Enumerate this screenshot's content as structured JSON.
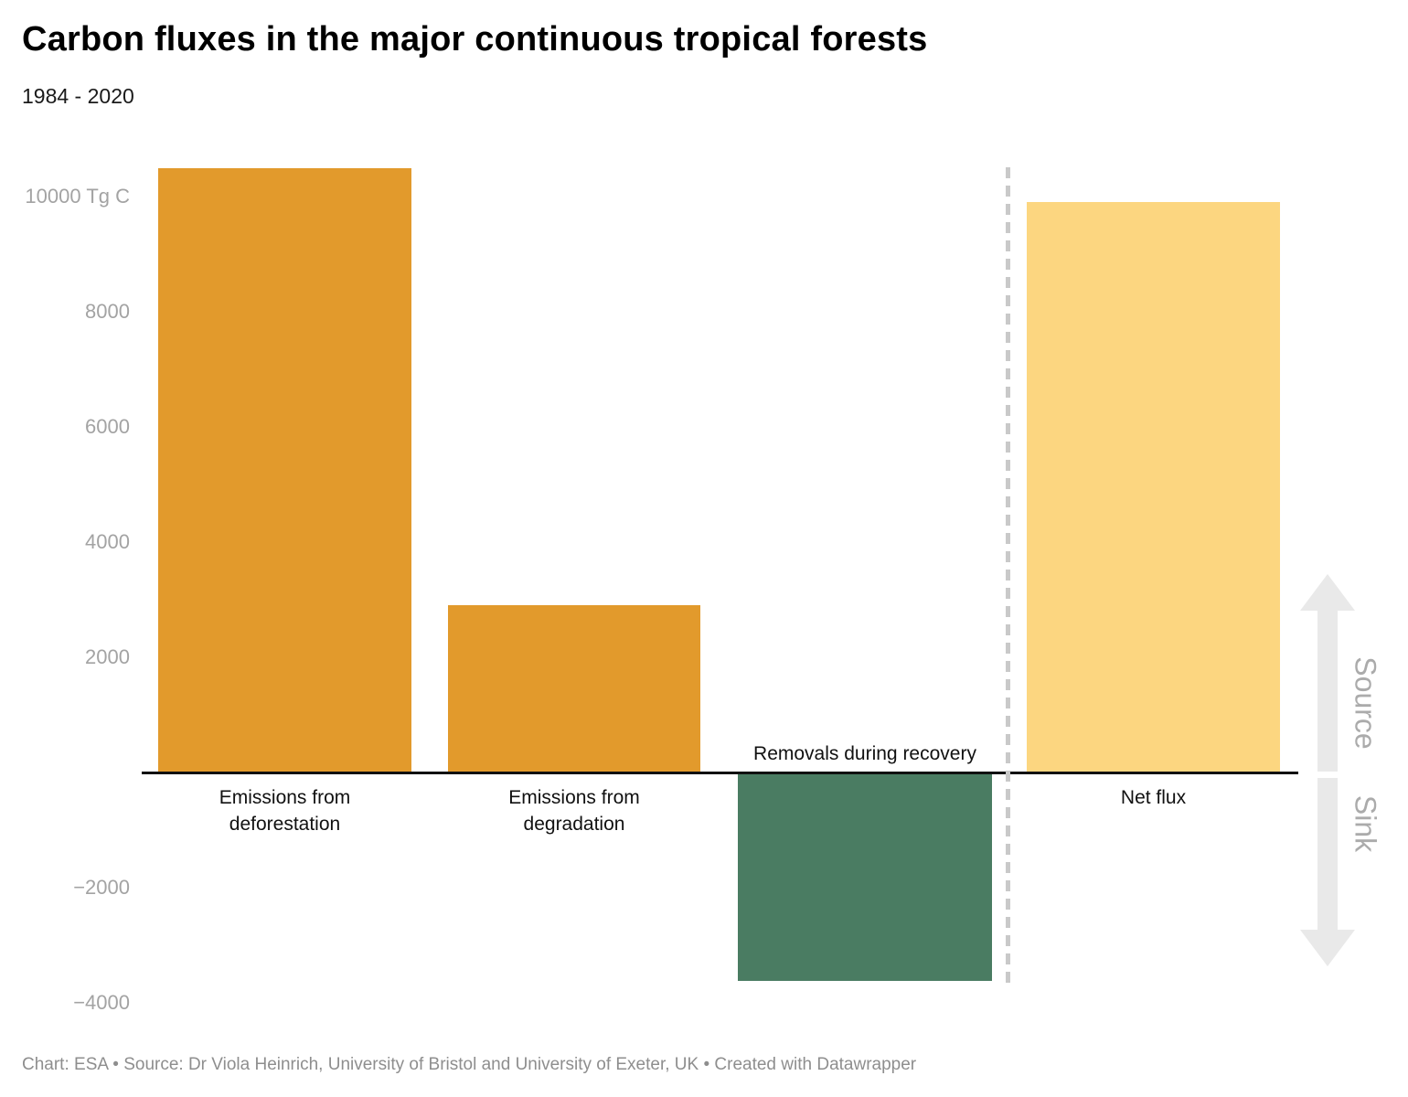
{
  "header": {
    "title": "Carbon fluxes in the major continuous tropical forests",
    "subtitle": "1984 - 2020"
  },
  "footer": {
    "text": "Chart: ESA • Source: Dr Viola Heinrich, University of Bristol and University of Exeter, UK • Created with Datawrapper"
  },
  "colors": {
    "bar_orange": "#E29A2C",
    "bar_green": "#4A7C62",
    "bar_yellow": "#FCD680",
    "axis": "#111111",
    "tick_text": "#A3A3A3",
    "separator": "#C9C9C9",
    "arrow": "#E9E9E9",
    "direction_text": "#ABABAB",
    "footer_text": "#8E8E8E"
  },
  "chart_data": {
    "type": "bar",
    "title": "Carbon fluxes in the major continuous tropical forests",
    "subtitle": "1984 - 2020",
    "unit": "Tg C",
    "xlabel": "",
    "ylabel": "Tg C",
    "categories": [
      "Emissions from deforestation",
      "Emissions from degradation",
      "Removals during recovery",
      "Net flux"
    ],
    "values": [
      10500,
      2900,
      -3600,
      9900
    ],
    "bar_colors": [
      "#E29A2C",
      "#E29A2C",
      "#4A7C62",
      "#FCD680"
    ],
    "ylim": [
      -4600,
      10700
    ],
    "yticks": [
      {
        "value": 10000,
        "label": "10000 Tg C"
      },
      {
        "value": 8000,
        "label": "8000"
      },
      {
        "value": 6000,
        "label": "6000"
      },
      {
        "value": 4000,
        "label": "4000"
      },
      {
        "value": 2000,
        "label": "2000"
      },
      {
        "value": -2000,
        "label": "−2000"
      },
      {
        "value": -4000,
        "label": "−4000"
      }
    ],
    "grid": false,
    "legend": "none",
    "separator": {
      "after_category_index": 2,
      "style": "dashed"
    },
    "direction_labels": {
      "positive": "Source",
      "negative": "Sink"
    }
  }
}
